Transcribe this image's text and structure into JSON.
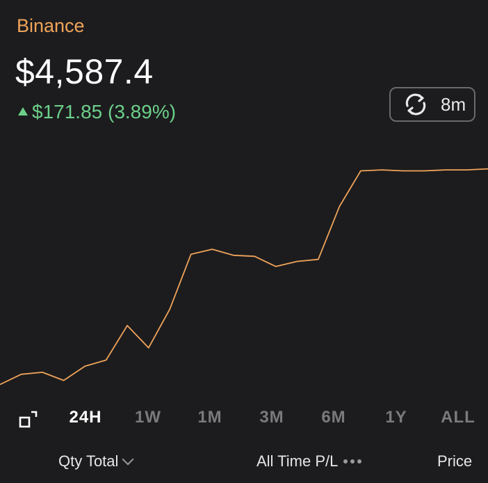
{
  "header": {
    "exchange": "Binance",
    "price": "$4,587.4",
    "change": "$171.85 (3.89%)",
    "change_direction_icon": "up-triangle-icon",
    "change_color": "#6ccf8a",
    "accent_color": "#f0a45a"
  },
  "refresh": {
    "icon": "refresh-icon",
    "label": "8m"
  },
  "chart_data": {
    "type": "line",
    "color": "#f0a45a",
    "grid": false,
    "title": "",
    "xlabel": "",
    "ylabel": "",
    "x": [
      0,
      1,
      2,
      3,
      4,
      5,
      6,
      7,
      8,
      9,
      10,
      11,
      12,
      13,
      14,
      15,
      16,
      17,
      18,
      19,
      20,
      21,
      22,
      23
    ],
    "values": [
      4402,
      4412,
      4414,
      4406,
      4420,
      4426,
      4460,
      4438,
      4476,
      4530,
      4535,
      4529,
      4528,
      4518,
      4523,
      4525,
      4577,
      4612,
      4613,
      4612,
      4612,
      4613,
      4613,
      4614
    ],
    "ylim": [
      4390,
      4650
    ]
  },
  "ranges": {
    "expand_icon": "expand-icon",
    "items": [
      "24H",
      "1W",
      "1M",
      "3M",
      "6M",
      "1Y",
      "ALL"
    ],
    "active": "24H"
  },
  "footer": {
    "qty_label": "Qty Total",
    "pl_label": "All Time P/L",
    "price_label": "Price"
  }
}
